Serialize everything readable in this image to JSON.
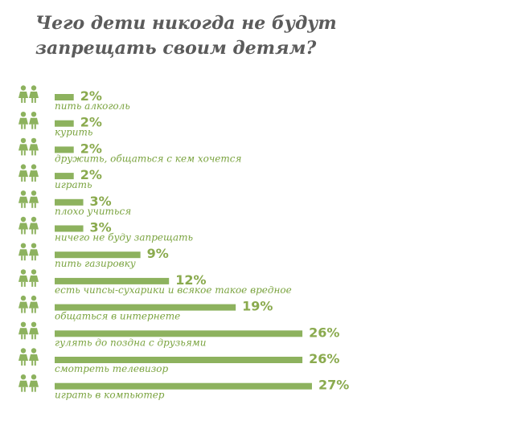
{
  "page": {
    "title_line1": "Чего дети никогда не будут",
    "title_line2": "запрещать своим детям?"
  },
  "colors": {
    "bar": "#8db25e",
    "value": "#8aaa4e",
    "label": "#7aa33f",
    "title": "#5b5b5b",
    "icon": "#8db25e"
  },
  "icon": "two-children-icon",
  "chart_data": {
    "type": "bar",
    "orientation": "horizontal",
    "unit": "%",
    "categories": [
      "пить алкоголь",
      "курить",
      "дружить, общаться с кем хочется",
      "играть",
      "плохо учиться",
      "ничего не буду запрещать",
      "пить газировку",
      "есть чипсы-сухарики и всякое такое вредное",
      "общаться в интернете",
      "гулять до поздна с друзьями",
      "смотреть телевизор",
      "играть в компьютер"
    ],
    "values": [
      2,
      2,
      2,
      2,
      3,
      3,
      9,
      12,
      19,
      26,
      26,
      27
    ],
    "value_labels": [
      "2%",
      "2%",
      "2%",
      "2%",
      "3%",
      "3%",
      "9%",
      "12%",
      "19%",
      "26%",
      "26%",
      "27%"
    ],
    "grid": false,
    "legend": "none"
  }
}
